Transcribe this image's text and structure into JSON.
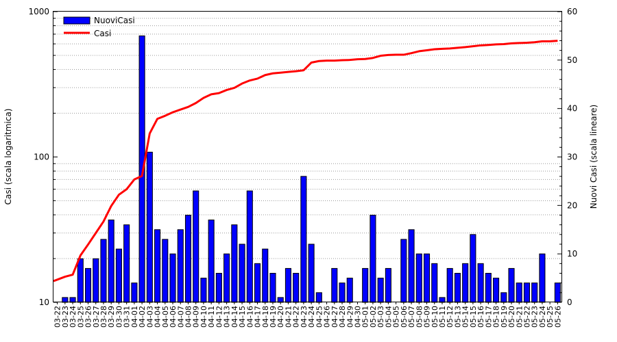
{
  "chart_data": {
    "type": "bar+line",
    "title": "",
    "categories": [
      "03-22",
      "03-23",
      "03-24",
      "03-25",
      "03-26",
      "03-27",
      "03-28",
      "03-29",
      "03-30",
      "03-31",
      "04-01",
      "04-02",
      "04-03",
      "04-04",
      "04-05",
      "04-06",
      "04-07",
      "04-08",
      "04-09",
      "04-10",
      "04-11",
      "04-12",
      "04-13",
      "04-14",
      "04-15",
      "04-16",
      "04-17",
      "04-18",
      "04-19",
      "04-20",
      "04-21",
      "04-22",
      "04-23",
      "04-24",
      "04-25",
      "04-26",
      "04-27",
      "04-28",
      "04-29",
      "04-30",
      "05-01",
      "05-02",
      "05-03",
      "05-04",
      "05-05",
      "05-06",
      "05-07",
      "05-08",
      "05-09",
      "05-10",
      "05-11",
      "05-12",
      "05-13",
      "05-14",
      "05-15",
      "05-16",
      "05-17",
      "05-18",
      "05-19",
      "05-20",
      "05-21",
      "05-22",
      "05-23",
      "05-24",
      "05-25",
      "05-26"
    ],
    "series": [
      {
        "name": "NuoviCasi",
        "type": "bar",
        "axis": "right",
        "color": "#0000ff",
        "values": [
          0,
          1,
          1,
          9,
          7,
          9,
          13,
          17,
          11,
          16,
          4,
          55,
          31,
          15,
          13,
          10,
          15,
          18,
          23,
          5,
          17,
          6,
          10,
          16,
          12,
          23,
          8,
          11,
          6,
          1,
          7,
          6,
          26,
          12,
          2,
          0,
          7,
          4,
          5,
          0,
          7,
          18,
          5,
          7,
          0,
          13,
          15,
          10,
          10,
          8,
          1,
          7,
          6,
          8,
          14,
          8,
          6,
          5,
          2,
          7,
          4,
          4,
          4,
          10,
          0,
          4
        ]
      },
      {
        "name": "Casi",
        "type": "line",
        "axis": "left",
        "color": "#ff0000",
        "values": [
          14,
          15,
          15.5,
          21,
          25,
          30,
          36,
          46,
          55,
          60,
          70,
          74,
          145,
          183,
          192,
          203,
          212,
          221,
          235,
          255,
          270,
          275,
          289,
          299,
          320,
          336,
          346,
          366,
          376,
          380,
          385,
          389,
          395,
          446,
          457,
          460,
          460,
          463,
          465,
          470,
          472,
          480,
          497,
          503,
          505,
          505,
          518,
          534,
          542,
          551,
          555,
          558,
          564,
          570,
          578,
          586,
          590,
          595,
          598,
          605,
          608,
          611,
          616,
          625,
          625,
          630
        ]
      }
    ],
    "y_left": {
      "label": "Casi (scala logaritmica)",
      "scale": "log",
      "range": [
        10,
        1000
      ],
      "ticks": [
        "10",
        "100",
        "1000"
      ]
    },
    "y_right": {
      "label": "Nuovi Casi (scala lineare)",
      "scale": "linear",
      "range": [
        0,
        60
      ],
      "ticks": [
        "0",
        "10",
        "20",
        "30",
        "40",
        "50",
        "60"
      ]
    },
    "xlabel": "",
    "grid": true,
    "legend_position": "top-left"
  }
}
